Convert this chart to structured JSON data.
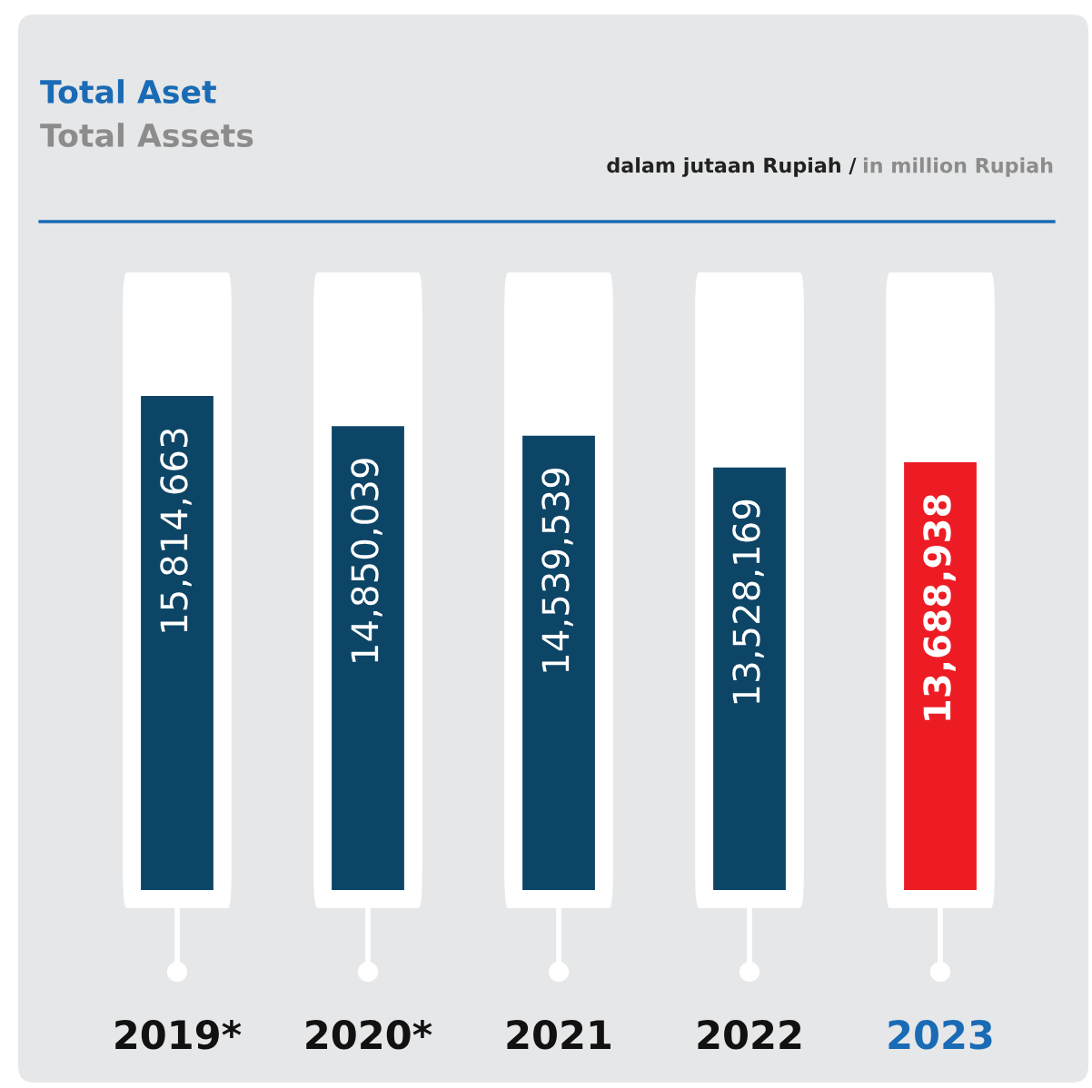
{
  "chart_data": {
    "type": "bar",
    "title": "Total Aset",
    "subtitle": "Total Assets",
    "annotations": [
      "dalam jutaan Rupiah /",
      "in million Rupiah"
    ],
    "categories": [
      "2019*",
      "2020*",
      "2021",
      "2022",
      "2023"
    ],
    "values": [
      15814663,
      14850039,
      14539539,
      13528169,
      13688938
    ],
    "colors": [
      "#0d4566",
      "#0d4566",
      "#0d4566",
      "#0d4566",
      "#ed1c24"
    ],
    "value_labels": [
      "15,814,663",
      "14,850,039",
      "14,539,539",
      "13,528,169",
      "13,688,938"
    ],
    "grid": false,
    "legend": false
  }
}
